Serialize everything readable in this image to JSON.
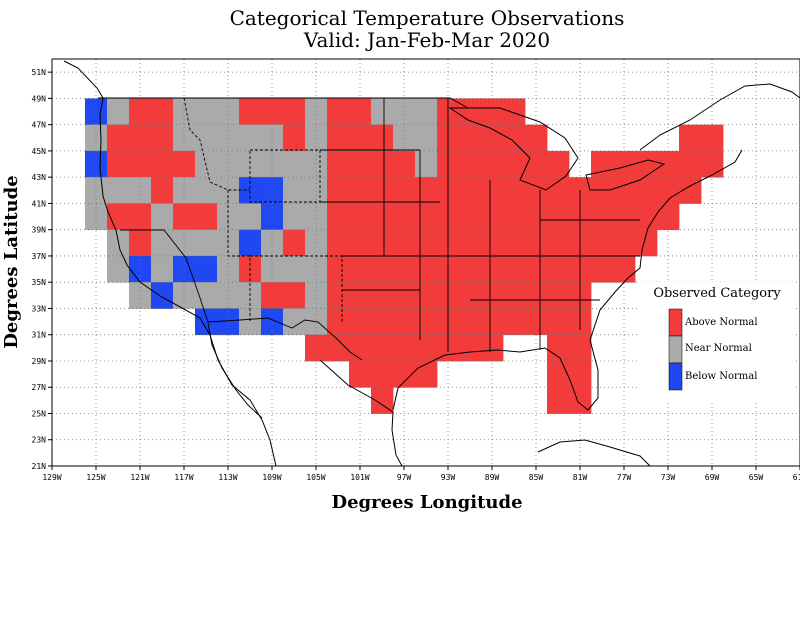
{
  "title_line1": "Categorical Temperature Observations",
  "title_line2": "Valid: Jan-Feb-Mar 2020",
  "xlabel": "Degrees Longitude",
  "ylabel": "Degrees Latitude",
  "legend": {
    "title": "Observed Category",
    "items": [
      {
        "label": "Above Normal",
        "color": "#f23b3b"
      },
      {
        "label": "Near Normal",
        "color": "#aaaaaa"
      },
      {
        "label": "Below Normal",
        "color": "#1f47f2"
      }
    ]
  },
  "chart_data": {
    "type": "heatmap",
    "title": "Categorical Temperature Observations",
    "subtitle": "Valid: Jan-Feb-Mar 2020",
    "xlabel": "Degrees Longitude",
    "ylabel": "Degrees Latitude",
    "xlim": [
      -129,
      -61
    ],
    "ylim": [
      21,
      52
    ],
    "x_ticks": [
      "129W",
      "125W",
      "121W",
      "117W",
      "113W",
      "109W",
      "105W",
      "101W",
      "97W",
      "93W",
      "89W",
      "85W",
      "81W",
      "77W",
      "73W",
      "69W",
      "65W",
      "61W"
    ],
    "y_ticks": [
      "21N",
      "23N",
      "25N",
      "27N",
      "29N",
      "31N",
      "33N",
      "35N",
      "37N",
      "39N",
      "41N",
      "43N",
      "45N",
      "47N",
      "49N",
      "51N"
    ],
    "grid": true,
    "legend_position": "right",
    "cell_size_deg": 2,
    "category_codes": {
      "A": "Above Normal",
      "N": "Near Normal",
      "B": "Below Normal"
    },
    "category_colors": {
      "A": "#f23b3b",
      "N": "#aaaaaa",
      "B": "#1f47f2"
    },
    "rows": [
      {
        "lat_top": 49,
        "cells": [
          {
            "lon": -125,
            "c": "B"
          },
          {
            "lon": -123,
            "c": "N"
          },
          {
            "lon": -121,
            "c": "A"
          },
          {
            "lon": -119,
            "c": "A"
          },
          {
            "lon": -117,
            "c": "N"
          },
          {
            "lon": -115,
            "c": "N"
          },
          {
            "lon": -113,
            "c": "N"
          },
          {
            "lon": -111,
            "c": "A"
          },
          {
            "lon": -109,
            "c": "A"
          },
          {
            "lon": -107,
            "c": "A"
          },
          {
            "lon": -105,
            "c": "N"
          },
          {
            "lon": -103,
            "c": "A"
          },
          {
            "lon": -101,
            "c": "A"
          },
          {
            "lon": -99,
            "c": "N"
          },
          {
            "lon": -97,
            "c": "N"
          },
          {
            "lon": -95,
            "c": "N"
          },
          {
            "lon": -93,
            "c": "A"
          },
          {
            "lon": -91,
            "c": "A"
          },
          {
            "lon": -89,
            "c": "A"
          },
          {
            "lon": -87,
            "c": "A"
          }
        ]
      },
      {
        "lat_top": 47,
        "cells": [
          {
            "lon": -125,
            "c": "N"
          },
          {
            "lon": -123,
            "c": "A"
          },
          {
            "lon": -121,
            "c": "A"
          },
          {
            "lon": -119,
            "c": "A"
          },
          {
            "lon": -117,
            "c": "N"
          },
          {
            "lon": -115,
            "c": "N"
          },
          {
            "lon": -113,
            "c": "N"
          },
          {
            "lon": -111,
            "c": "N"
          },
          {
            "lon": -109,
            "c": "N"
          },
          {
            "lon": -107,
            "c": "A"
          },
          {
            "lon": -105,
            "c": "N"
          },
          {
            "lon": -103,
            "c": "A"
          },
          {
            "lon": -101,
            "c": "A"
          },
          {
            "lon": -99,
            "c": "A"
          },
          {
            "lon": -97,
            "c": "N"
          },
          {
            "lon": -95,
            "c": "N"
          },
          {
            "lon": -93,
            "c": "A"
          },
          {
            "lon": -91,
            "c": "A"
          },
          {
            "lon": -89,
            "c": "A"
          },
          {
            "lon": -87,
            "c": "A"
          },
          {
            "lon": -85,
            "c": "A"
          },
          {
            "lon": -71,
            "c": "A"
          },
          {
            "lon": -69,
            "c": "A"
          }
        ]
      },
      {
        "lat_top": 45,
        "cells": [
          {
            "lon": -125,
            "c": "B"
          },
          {
            "lon": -123,
            "c": "A"
          },
          {
            "lon": -121,
            "c": "A"
          },
          {
            "lon": -119,
            "c": "A"
          },
          {
            "lon": -117,
            "c": "A"
          },
          {
            "lon": -115,
            "c": "N"
          },
          {
            "lon": -113,
            "c": "N"
          },
          {
            "lon": -111,
            "c": "N"
          },
          {
            "lon": -109,
            "c": "N"
          },
          {
            "lon": -107,
            "c": "N"
          },
          {
            "lon": -105,
            "c": "N"
          },
          {
            "lon": -103,
            "c": "A"
          },
          {
            "lon": -101,
            "c": "A"
          },
          {
            "lon": -99,
            "c": "A"
          },
          {
            "lon": -97,
            "c": "A"
          },
          {
            "lon": -95,
            "c": "N"
          },
          {
            "lon": -93,
            "c": "A"
          },
          {
            "lon": -91,
            "c": "A"
          },
          {
            "lon": -89,
            "c": "A"
          },
          {
            "lon": -87,
            "c": "A"
          },
          {
            "lon": -85,
            "c": "A"
          },
          {
            "lon": -83,
            "c": "A"
          },
          {
            "lon": -79,
            "c": "A"
          },
          {
            "lon": -77,
            "c": "A"
          },
          {
            "lon": -75,
            "c": "A"
          },
          {
            "lon": -73,
            "c": "A"
          },
          {
            "lon": -71,
            "c": "A"
          },
          {
            "lon": -69,
            "c": "A"
          }
        ]
      },
      {
        "lat_top": 43,
        "cells": [
          {
            "lon": -125,
            "c": "N"
          },
          {
            "lon": -123,
            "c": "N"
          },
          {
            "lon": -121,
            "c": "N"
          },
          {
            "lon": -119,
            "c": "A"
          },
          {
            "lon": -117,
            "c": "N"
          },
          {
            "lon": -115,
            "c": "N"
          },
          {
            "lon": -113,
            "c": "N"
          },
          {
            "lon": -111,
            "c": "B"
          },
          {
            "lon": -109,
            "c": "B"
          },
          {
            "lon": -107,
            "c": "N"
          },
          {
            "lon": -105,
            "c": "N"
          },
          {
            "lon": -103,
            "c": "A"
          },
          {
            "lon": -101,
            "c": "A"
          },
          {
            "lon": -99,
            "c": "A"
          },
          {
            "lon": -97,
            "c": "A"
          },
          {
            "lon": -95,
            "c": "A"
          },
          {
            "lon": -93,
            "c": "A"
          },
          {
            "lon": -91,
            "c": "A"
          },
          {
            "lon": -89,
            "c": "A"
          },
          {
            "lon": -87,
            "c": "A"
          },
          {
            "lon": -85,
            "c": "A"
          },
          {
            "lon": -83,
            "c": "A"
          },
          {
            "lon": -81,
            "c": "A"
          },
          {
            "lon": -79,
            "c": "A"
          },
          {
            "lon": -77,
            "c": "A"
          },
          {
            "lon": -75,
            "c": "A"
          },
          {
            "lon": -73,
            "c": "A"
          },
          {
            "lon": -71,
            "c": "A"
          }
        ]
      },
      {
        "lat_top": 41,
        "cells": [
          {
            "lon": -125,
            "c": "N"
          },
          {
            "lon": -123,
            "c": "A"
          },
          {
            "lon": -121,
            "c": "A"
          },
          {
            "lon": -119,
            "c": "N"
          },
          {
            "lon": -117,
            "c": "A"
          },
          {
            "lon": -115,
            "c": "A"
          },
          {
            "lon": -113,
            "c": "N"
          },
          {
            "lon": -111,
            "c": "N"
          },
          {
            "lon": -109,
            "c": "B"
          },
          {
            "lon": -107,
            "c": "N"
          },
          {
            "lon": -105,
            "c": "N"
          },
          {
            "lon": -103,
            "c": "A"
          },
          {
            "lon": -101,
            "c": "A"
          },
          {
            "lon": -99,
            "c": "A"
          },
          {
            "lon": -97,
            "c": "A"
          },
          {
            "lon": -95,
            "c": "A"
          },
          {
            "lon": -93,
            "c": "A"
          },
          {
            "lon": -91,
            "c": "A"
          },
          {
            "lon": -89,
            "c": "A"
          },
          {
            "lon": -87,
            "c": "A"
          },
          {
            "lon": -85,
            "c": "A"
          },
          {
            "lon": -83,
            "c": "A"
          },
          {
            "lon": -81,
            "c": "A"
          },
          {
            "lon": -79,
            "c": "A"
          },
          {
            "lon": -77,
            "c": "A"
          },
          {
            "lon": -75,
            "c": "A"
          },
          {
            "lon": -73,
            "c": "A"
          }
        ]
      },
      {
        "lat_top": 39,
        "cells": [
          {
            "lon": -123,
            "c": "N"
          },
          {
            "lon": -121,
            "c": "A"
          },
          {
            "lon": -119,
            "c": "N"
          },
          {
            "lon": -117,
            "c": "N"
          },
          {
            "lon": -115,
            "c": "N"
          },
          {
            "lon": -113,
            "c": "N"
          },
          {
            "lon": -111,
            "c": "B"
          },
          {
            "lon": -109,
            "c": "N"
          },
          {
            "lon": -107,
            "c": "A"
          },
          {
            "lon": -105,
            "c": "N"
          },
          {
            "lon": -103,
            "c": "A"
          },
          {
            "lon": -101,
            "c": "A"
          },
          {
            "lon": -99,
            "c": "A"
          },
          {
            "lon": -97,
            "c": "A"
          },
          {
            "lon": -95,
            "c": "A"
          },
          {
            "lon": -93,
            "c": "A"
          },
          {
            "lon": -91,
            "c": "A"
          },
          {
            "lon": -89,
            "c": "A"
          },
          {
            "lon": -87,
            "c": "A"
          },
          {
            "lon": -85,
            "c": "A"
          },
          {
            "lon": -83,
            "c": "A"
          },
          {
            "lon": -81,
            "c": "A"
          },
          {
            "lon": -79,
            "c": "A"
          },
          {
            "lon": -77,
            "c": "A"
          },
          {
            "lon": -75,
            "c": "A"
          }
        ]
      },
      {
        "lat_top": 37,
        "cells": [
          {
            "lon": -123,
            "c": "N"
          },
          {
            "lon": -121,
            "c": "B"
          },
          {
            "lon": -119,
            "c": "N"
          },
          {
            "lon": -117,
            "c": "B"
          },
          {
            "lon": -115,
            "c": "B"
          },
          {
            "lon": -113,
            "c": "N"
          },
          {
            "lon": -111,
            "c": "A"
          },
          {
            "lon": -109,
            "c": "N"
          },
          {
            "lon": -107,
            "c": "N"
          },
          {
            "lon": -105,
            "c": "N"
          },
          {
            "lon": -103,
            "c": "A"
          },
          {
            "lon": -101,
            "c": "A"
          },
          {
            "lon": -99,
            "c": "A"
          },
          {
            "lon": -97,
            "c": "A"
          },
          {
            "lon": -95,
            "c": "A"
          },
          {
            "lon": -93,
            "c": "A"
          },
          {
            "lon": -91,
            "c": "A"
          },
          {
            "lon": -89,
            "c": "A"
          },
          {
            "lon": -87,
            "c": "A"
          },
          {
            "lon": -85,
            "c": "A"
          },
          {
            "lon": -83,
            "c": "A"
          },
          {
            "lon": -81,
            "c": "A"
          },
          {
            "lon": -79,
            "c": "A"
          },
          {
            "lon": -77,
            "c": "A"
          }
        ]
      },
      {
        "lat_top": 35,
        "cells": [
          {
            "lon": -121,
            "c": "N"
          },
          {
            "lon": -119,
            "c": "B"
          },
          {
            "lon": -117,
            "c": "N"
          },
          {
            "lon": -115,
            "c": "N"
          },
          {
            "lon": -113,
            "c": "N"
          },
          {
            "lon": -111,
            "c": "N"
          },
          {
            "lon": -109,
            "c": "A"
          },
          {
            "lon": -107,
            "c": "A"
          },
          {
            "lon": -105,
            "c": "N"
          },
          {
            "lon": -103,
            "c": "A"
          },
          {
            "lon": -101,
            "c": "A"
          },
          {
            "lon": -99,
            "c": "A"
          },
          {
            "lon": -97,
            "c": "A"
          },
          {
            "lon": -95,
            "c": "A"
          },
          {
            "lon": -93,
            "c": "A"
          },
          {
            "lon": -91,
            "c": "A"
          },
          {
            "lon": -89,
            "c": "A"
          },
          {
            "lon": -87,
            "c": "A"
          },
          {
            "lon": -85,
            "c": "A"
          },
          {
            "lon": -83,
            "c": "A"
          },
          {
            "lon": -81,
            "c": "A"
          }
        ]
      },
      {
        "lat_top": 33,
        "cells": [
          {
            "lon": -115,
            "c": "B"
          },
          {
            "lon": -113,
            "c": "B"
          },
          {
            "lon": -111,
            "c": "N"
          },
          {
            "lon": -109,
            "c": "B"
          },
          {
            "lon": -107,
            "c": "N"
          },
          {
            "lon": -105,
            "c": "N"
          },
          {
            "lon": -103,
            "c": "A"
          },
          {
            "lon": -101,
            "c": "A"
          },
          {
            "lon": -99,
            "c": "A"
          },
          {
            "lon": -97,
            "c": "A"
          },
          {
            "lon": -95,
            "c": "A"
          },
          {
            "lon": -93,
            "c": "A"
          },
          {
            "lon": -91,
            "c": "A"
          },
          {
            "lon": -89,
            "c": "A"
          },
          {
            "lon": -87,
            "c": "A"
          },
          {
            "lon": -85,
            "c": "A"
          },
          {
            "lon": -83,
            "c": "A"
          },
          {
            "lon": -81,
            "c": "A"
          }
        ]
      },
      {
        "lat_top": 31,
        "cells": [
          {
            "lon": -105,
            "c": "A"
          },
          {
            "lon": -103,
            "c": "A"
          },
          {
            "lon": -101,
            "c": "A"
          },
          {
            "lon": -99,
            "c": "A"
          },
          {
            "lon": -97,
            "c": "A"
          },
          {
            "lon": -95,
            "c": "A"
          },
          {
            "lon": -93,
            "c": "A"
          },
          {
            "lon": -91,
            "c": "A"
          },
          {
            "lon": -89,
            "c": "A"
          },
          {
            "lon": -83,
            "c": "A"
          },
          {
            "lon": -81,
            "c": "A"
          }
        ]
      },
      {
        "lat_top": 29,
        "cells": [
          {
            "lon": -101,
            "c": "A"
          },
          {
            "lon": -99,
            "c": "A"
          },
          {
            "lon": -97,
            "c": "A"
          },
          {
            "lon": -95,
            "c": "A"
          },
          {
            "lon": -83,
            "c": "A"
          },
          {
            "lon": -81,
            "c": "A"
          }
        ]
      },
      {
        "lat_top": 27,
        "cells": [
          {
            "lon": -99,
            "c": "A"
          },
          {
            "lon": -83,
            "c": "A"
          },
          {
            "lon": -81,
            "c": "A"
          }
        ]
      }
    ]
  }
}
